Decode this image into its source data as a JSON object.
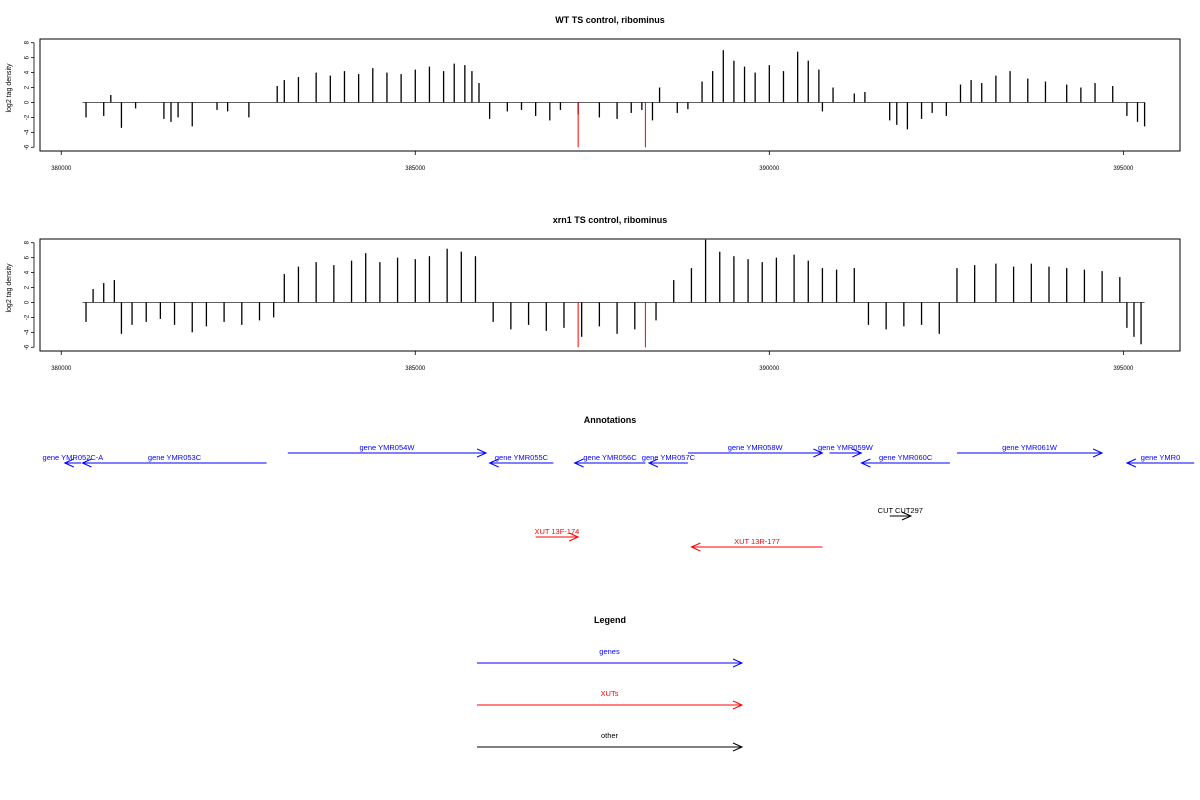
{
  "chart_data": [
    {
      "type": "bar",
      "title": "WT TS control, ribominus",
      "ylabel": "log2 tag density",
      "xlim": [
        379700,
        395800
      ],
      "ylim": [
        -6.5,
        8.5
      ],
      "x_ticks": [
        380000,
        385000,
        390000,
        395000
      ],
      "x_tick_labels": [
        "380000",
        "385000",
        "390000",
        "395000"
      ],
      "y_ticks": [
        -6,
        -4,
        -2,
        0,
        2,
        4,
        6,
        8
      ],
      "y_tick_labels": [
        "-6",
        "-4",
        "-2",
        "0",
        "2",
        "4",
        "6",
        "8"
      ],
      "baseline_range": [
        380300,
        395300
      ],
      "series": [
        {
          "values": [
            [
              380350,
              -2.0
            ],
            [
              380600,
              -1.8
            ],
            [
              380700,
              1.0
            ],
            [
              380850,
              -3.4
            ],
            [
              381050,
              -0.8
            ],
            [
              381450,
              -2.2
            ],
            [
              381550,
              -2.6
            ],
            [
              381650,
              -2.0
            ],
            [
              381850,
              -3.2
            ],
            [
              382200,
              -1.0
            ],
            [
              382350,
              -1.2
            ],
            [
              382650,
              -2.0
            ],
            [
              383050,
              2.2
            ],
            [
              383150,
              3.0
            ],
            [
              383350,
              3.4
            ],
            [
              383600,
              4.0
            ],
            [
              383800,
              3.6
            ],
            [
              384000,
              4.2
            ],
            [
              384200,
              3.8
            ],
            [
              384400,
              4.6
            ],
            [
              384600,
              4.0
            ],
            [
              384800,
              3.8
            ],
            [
              385000,
              4.4
            ],
            [
              385200,
              4.8
            ],
            [
              385400,
              4.2
            ],
            [
              385550,
              5.2
            ],
            [
              385700,
              5.0
            ],
            [
              385800,
              4.2
            ],
            [
              385900,
              2.6
            ],
            [
              386050,
              -2.2
            ],
            [
              386300,
              -1.2
            ],
            [
              386500,
              -1.0
            ],
            [
              386700,
              -1.8
            ],
            [
              386900,
              -2.4
            ],
            [
              387050,
              -1.0
            ],
            [
              387300,
              -1.6
            ],
            [
              387600,
              -2.0
            ],
            [
              387850,
              -2.2
            ],
            [
              388050,
              -1.4
            ],
            [
              388200,
              -1.0
            ],
            [
              388350,
              -2.4
            ],
            [
              388450,
              2.0
            ],
            [
              388700,
              -1.4
            ],
            [
              388850,
              -0.9
            ],
            [
              389050,
              2.8
            ],
            [
              389200,
              4.2
            ],
            [
              389350,
              7.0
            ],
            [
              389500,
              5.6
            ],
            [
              389650,
              4.8
            ],
            [
              389800,
              4.0
            ],
            [
              390000,
              5.0
            ],
            [
              390200,
              4.2
            ],
            [
              390400,
              6.8
            ],
            [
              390550,
              5.6
            ],
            [
              390700,
              4.4
            ],
            [
              390750,
              -1.2
            ],
            [
              390900,
              2.0
            ],
            [
              391200,
              1.2
            ],
            [
              391350,
              1.4
            ],
            [
              391700,
              -2.4
            ],
            [
              391800,
              -3.0
            ],
            [
              391950,
              -3.6
            ],
            [
              392150,
              -2.2
            ],
            [
              392300,
              -1.4
            ],
            [
              392500,
              -1.8
            ],
            [
              392700,
              2.4
            ],
            [
              392850,
              3.0
            ],
            [
              393000,
              2.6
            ],
            [
              393200,
              3.6
            ],
            [
              393400,
              4.2
            ],
            [
              393650,
              3.2
            ],
            [
              393900,
              2.8
            ],
            [
              394200,
              2.4
            ],
            [
              394400,
              2.0
            ],
            [
              394600,
              2.6
            ],
            [
              394850,
              2.2
            ],
            [
              395050,
              -1.8
            ],
            [
              395200,
              -2.6
            ],
            [
              395300,
              -3.2
            ]
          ]
        },
        {
          "values": [
            [
              387300,
              -6.0
            ],
            [
              388250,
              -6.0
            ]
          ]
        }
      ]
    },
    {
      "type": "bar",
      "title": "xrn1 TS control, ribominus",
      "ylabel": "log2 tag density",
      "xlim": [
        379700,
        395800
      ],
      "ylim": [
        -6.5,
        8.5
      ],
      "x_ticks": [
        380000,
        385000,
        390000,
        395000
      ],
      "x_tick_labels": [
        "380000",
        "385000",
        "390000",
        "395000"
      ],
      "y_ticks": [
        -6,
        -4,
        -2,
        0,
        2,
        4,
        6,
        8
      ],
      "y_tick_labels": [
        "-6",
        "-4",
        "-2",
        "0",
        "2",
        "4",
        "6",
        "8"
      ],
      "baseline_range": [
        380300,
        395300
      ],
      "series": [
        {
          "values": [
            [
              380350,
              -2.6
            ],
            [
              380450,
              1.8
            ],
            [
              380600,
              2.6
            ],
            [
              380750,
              3.0
            ],
            [
              380850,
              -4.2
            ],
            [
              381000,
              -3.0
            ],
            [
              381200,
              -2.6
            ],
            [
              381400,
              -2.2
            ],
            [
              381600,
              -3.0
            ],
            [
              381850,
              -4.0
            ],
            [
              382050,
              -3.2
            ],
            [
              382300,
              -2.6
            ],
            [
              382550,
              -3.0
            ],
            [
              382800,
              -2.4
            ],
            [
              383000,
              -2.0
            ],
            [
              383150,
              3.8
            ],
            [
              383350,
              4.8
            ],
            [
              383600,
              5.4
            ],
            [
              383850,
              5.0
            ],
            [
              384100,
              5.6
            ],
            [
              384300,
              6.6
            ],
            [
              384500,
              5.4
            ],
            [
              384750,
              6.0
            ],
            [
              385000,
              5.8
            ],
            [
              385200,
              6.2
            ],
            [
              385450,
              7.2
            ],
            [
              385650,
              6.8
            ],
            [
              385850,
              6.2
            ],
            [
              386100,
              -2.6
            ],
            [
              386350,
              -3.6
            ],
            [
              386600,
              -3.0
            ],
            [
              386850,
              -3.8
            ],
            [
              387100,
              -3.4
            ],
            [
              387350,
              -4.6
            ],
            [
              387600,
              -3.2
            ],
            [
              387850,
              -4.2
            ],
            [
              388100,
              -3.6
            ],
            [
              388400,
              -2.4
            ],
            [
              388650,
              3.0
            ],
            [
              388900,
              4.6
            ],
            [
              389100,
              8.4
            ],
            [
              389300,
              6.8
            ],
            [
              389500,
              6.2
            ],
            [
              389700,
              5.8
            ],
            [
              389900,
              5.4
            ],
            [
              390100,
              6.0
            ],
            [
              390350,
              6.4
            ],
            [
              390550,
              5.6
            ],
            [
              390750,
              4.6
            ],
            [
              390950,
              4.4
            ],
            [
              391200,
              4.6
            ],
            [
              391400,
              -3.0
            ],
            [
              391650,
              -3.6
            ],
            [
              391900,
              -3.2
            ],
            [
              392150,
              -3.0
            ],
            [
              392400,
              -4.2
            ],
            [
              392650,
              4.6
            ],
            [
              392900,
              5.0
            ],
            [
              393200,
              5.2
            ],
            [
              393450,
              4.8
            ],
            [
              393700,
              5.2
            ],
            [
              393950,
              4.8
            ],
            [
              394200,
              4.6
            ],
            [
              394450,
              4.4
            ],
            [
              394700,
              4.2
            ],
            [
              394950,
              3.4
            ],
            [
              395050,
              -3.4
            ],
            [
              395150,
              -4.6
            ],
            [
              395250,
              -5.6
            ]
          ]
        },
        {
          "values": [
            [
              387300,
              -6.0
            ],
            [
              388250,
              -6.0
            ]
          ]
        }
      ]
    },
    {
      "type": "annotation-track",
      "title": "Annotations",
      "xlim": [
        379700,
        395800
      ],
      "colors": {
        "gene": "#0000ff",
        "xut": "#ff0000",
        "other": "#000000"
      },
      "features": [
        {
          "label": "gene YMR052C-A",
          "start": 380050,
          "end": 380280,
          "strand": "-",
          "kind": "gene",
          "row": 2
        },
        {
          "label": "gene YMR053C",
          "start": 380300,
          "end": 382900,
          "strand": "-",
          "kind": "gene",
          "row": 2
        },
        {
          "label": "gene YMR054W",
          "start": 383200,
          "end": 386000,
          "strand": "+",
          "kind": "gene",
          "row": 1
        },
        {
          "label": "gene YMR055C",
          "start": 386050,
          "end": 386950,
          "strand": "-",
          "kind": "gene",
          "row": 2
        },
        {
          "label": "gene YMR056C",
          "start": 387250,
          "end": 388250,
          "strand": "-",
          "kind": "gene",
          "row": 2
        },
        {
          "label": "gene YMR057C",
          "start": 388300,
          "end": 388850,
          "strand": "-",
          "kind": "gene",
          "row": 2
        },
        {
          "label": "gene YMR058W",
          "start": 388850,
          "end": 390750,
          "strand": "+",
          "kind": "gene",
          "row": 1
        },
        {
          "label": "gene YMR059W",
          "start": 390850,
          "end": 391300,
          "strand": "+",
          "kind": "gene",
          "row": 1
        },
        {
          "label": "gene YMR060C",
          "start": 391300,
          "end": 392550,
          "strand": "-",
          "kind": "gene",
          "row": 2
        },
        {
          "label": "gene YMR061W",
          "start": 392650,
          "end": 394700,
          "strand": "+",
          "kind": "gene",
          "row": 1
        },
        {
          "label": "gene YMR0",
          "start": 395050,
          "end": 396000,
          "strand": "-",
          "kind": "gene",
          "row": 2
        },
        {
          "label": "CUT CUT297",
          "start": 391700,
          "end": 392000,
          "strand": "+",
          "kind": "other",
          "row": 3
        },
        {
          "label": "XUT 13F-174",
          "start": 386700,
          "end": 387300,
          "strand": "+",
          "kind": "xut",
          "row": 4
        },
        {
          "label": "XUT 13R-177",
          "start": 388900,
          "end": 390750,
          "strand": "-",
          "kind": "xut",
          "row": 5
        }
      ]
    },
    {
      "type": "legend",
      "title": "Legend",
      "entries": [
        {
          "label": "genes",
          "color": "#0000ff"
        },
        {
          "label": "XUTs",
          "color": "#ff0000"
        },
        {
          "label": "other",
          "color": "#000000"
        }
      ]
    }
  ]
}
